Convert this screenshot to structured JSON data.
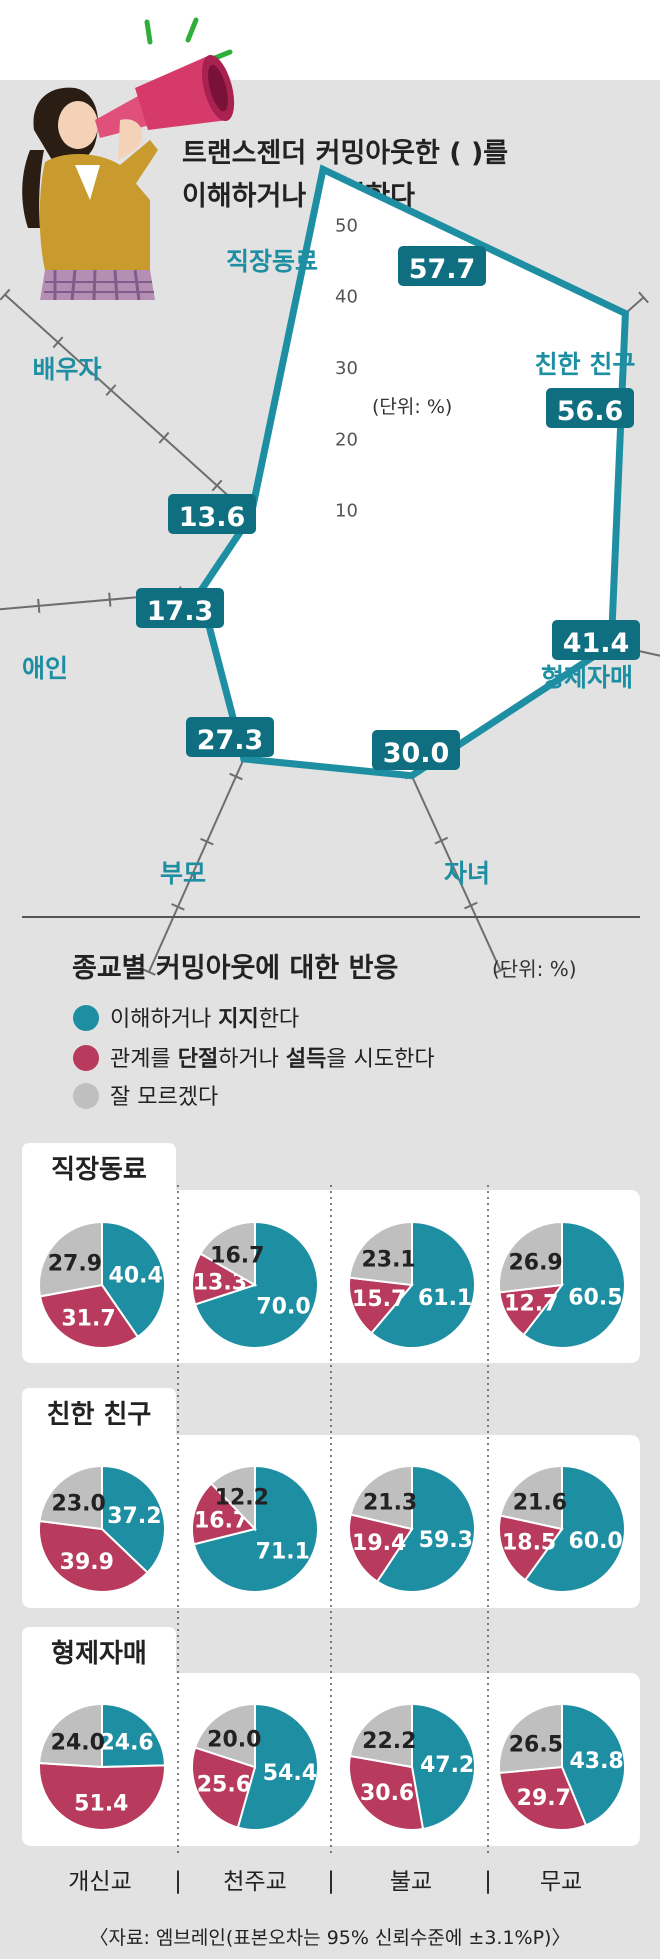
{
  "title": {
    "line1": "트랜스젠더 커밍아웃한 (     )를",
    "line2": "이해하거나 지지한다"
  },
  "chart_data": [
    {
      "type": "radar",
      "axes": [
        "직장동료",
        "친한 친구",
        "형제자매",
        "자녀",
        "부모",
        "애인",
        "배우자"
      ],
      "values": [
        57.7,
        56.6,
        41.4,
        30.0,
        27.3,
        17.3,
        13.6
      ],
      "value_labels": [
        "57.7",
        "56.6",
        "41.4",
        "30.0",
        "27.3",
        "17.3",
        "13.6"
      ],
      "scale_ticks": [
        "10",
        "20",
        "30",
        "40",
        "50"
      ],
      "unit_note": "(단위: %)",
      "range": [
        0,
        60
      ]
    },
    {
      "type": "pie",
      "title": "종교별 커밍아웃에 대한 반응",
      "unit": "(단위: %)",
      "legend": [
        {
          "pre": "이해하거나 ",
          "bold": "지지",
          "post": "한다",
          "color": "#1e8fa3"
        },
        {
          "pre": "관계를 ",
          "bold": "단절",
          "post": "하거나 ",
          "bold2": "설득",
          "post2": "을 시도한다",
          "color": "#b83a5c"
        },
        {
          "pre": "잘 모르겠다",
          "bold": "",
          "post": "",
          "color": "#bfbfbf"
        }
      ],
      "series_colors": [
        "#1e8fa3",
        "#b83a5c",
        "#bfbfbf"
      ],
      "religions": [
        "개신교",
        "천주교",
        "불교",
        "무교"
      ],
      "groups": [
        {
          "label": "직장동료",
          "pies": [
            {
              "values": [
                40.4,
                31.7,
                27.9
              ],
              "labels": [
                "40.4",
                "31.7",
                "27.9"
              ]
            },
            {
              "values": [
                70.0,
                13.3,
                16.7
              ],
              "labels": [
                "70.0",
                "13.3",
                "16.7"
              ]
            },
            {
              "values": [
                61.1,
                15.7,
                23.1
              ],
              "labels": [
                "61.1",
                "15.7",
                "23.1"
              ]
            },
            {
              "values": [
                60.5,
                12.7,
                26.9
              ],
              "labels": [
                "60.5",
                "12.7",
                "26.9"
              ]
            }
          ]
        },
        {
          "label": "친한 친구",
          "pies": [
            {
              "values": [
                37.2,
                39.9,
                23.0
              ],
              "labels": [
                "37.2",
                "39.9",
                "23.0"
              ]
            },
            {
              "values": [
                71.1,
                16.7,
                12.2
              ],
              "labels": [
                "71.1",
                "16.7",
                "12.2"
              ]
            },
            {
              "values": [
                59.3,
                19.4,
                21.3
              ],
              "labels": [
                "59.3",
                "19.4",
                "21.3"
              ]
            },
            {
              "values": [
                60.0,
                18.5,
                21.6
              ],
              "labels": [
                "60.0",
                "18.5",
                "21.6"
              ]
            }
          ]
        },
        {
          "label": "형제자매",
          "pies": [
            {
              "values": [
                24.6,
                51.4,
                24.0
              ],
              "labels": [
                "24.6",
                "51.4",
                "24.0"
              ]
            },
            {
              "values": [
                54.4,
                25.6,
                20.0
              ],
              "labels": [
                "54.4",
                "25.6",
                "20.0"
              ]
            },
            {
              "values": [
                47.2,
                30.6,
                22.2
              ],
              "labels": [
                "47.2",
                "30.6",
                "22.2"
              ]
            },
            {
              "values": [
                43.8,
                29.7,
                26.5
              ],
              "labels": [
                "43.8",
                "29.7",
                "26.5"
              ]
            }
          ]
        }
      ]
    }
  ],
  "separator": "|",
  "source": "〈자료: 엠브레인(표본오차는 95% 신뢰수준에 ±3.1%P)〉"
}
